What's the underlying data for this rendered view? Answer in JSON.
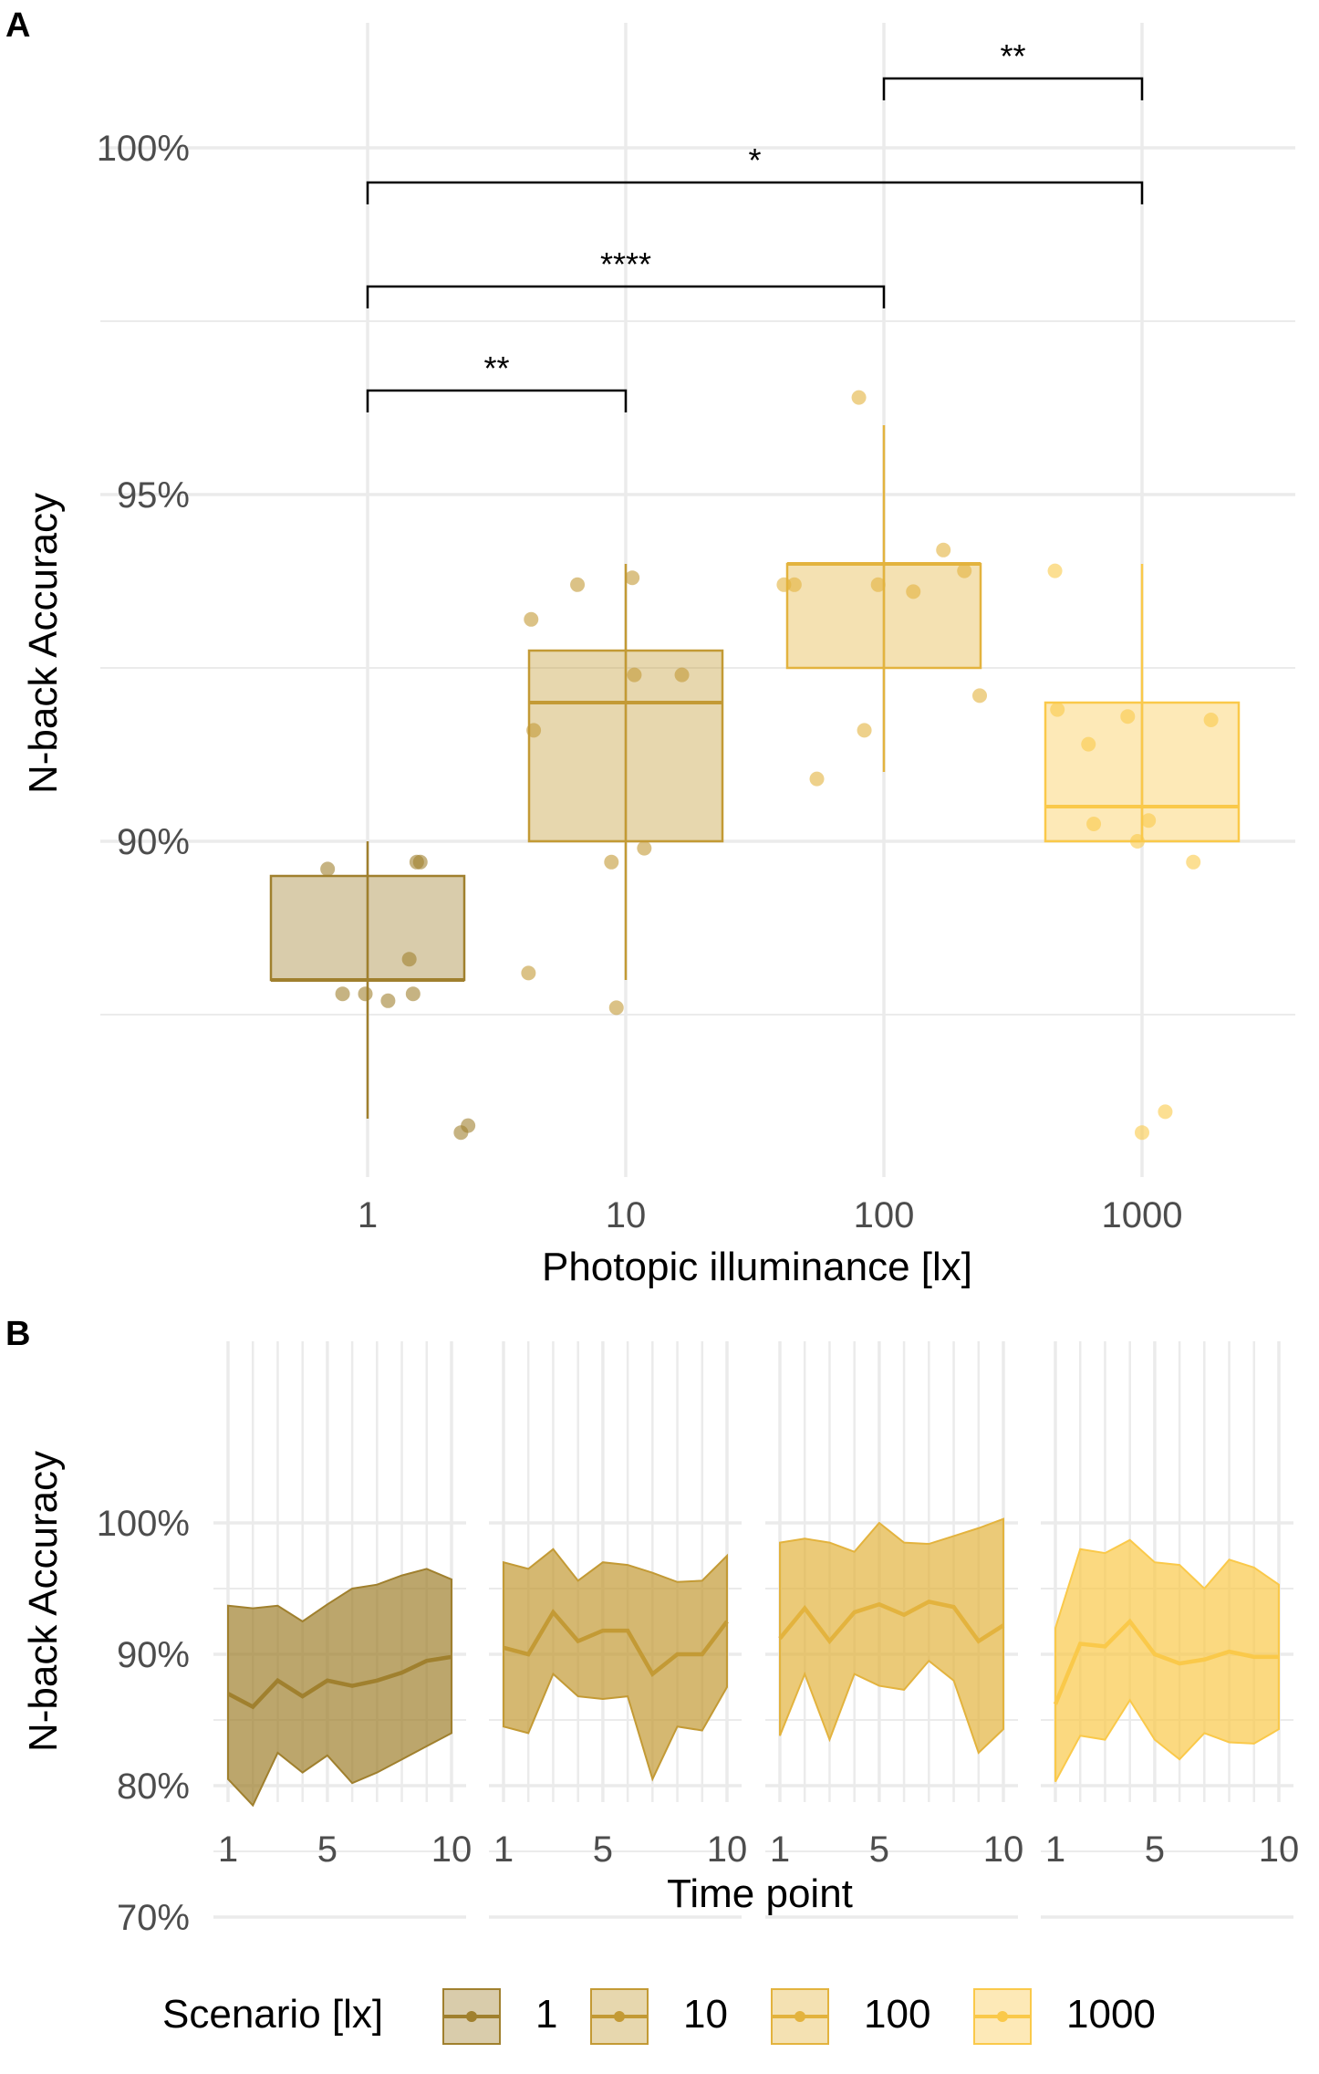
{
  "colors": {
    "s1": "#a0802e",
    "s10": "#c39a35",
    "s100": "#e3b33e",
    "s1000": "#fac94a",
    "grid": "#ebebeb",
    "text_tick": "#4d4d4d"
  },
  "chart_data": [
    {
      "panel": "A",
      "type": "box",
      "title": "A",
      "xlabel": "Photopic illuminance [lx]",
      "ylabel": "N-back Accuracy",
      "x_scale": "log10",
      "categories": [
        "1",
        "10",
        "100",
        "1000"
      ],
      "yticks": [
        "90%",
        "95%",
        "100%"
      ],
      "ylim": [
        85.3,
        101.8
      ],
      "boxes": [
        {
          "x": 1,
          "whisker_low": 86.0,
          "q1": 88.0,
          "median": 88.0,
          "q3": 89.5,
          "whisker_high": 90.0,
          "points": [
            [
              0.7,
              89.6
            ],
            [
              0.8,
              87.8
            ],
            [
              0.98,
              87.8
            ],
            [
              1.2,
              87.7
            ],
            [
              1.45,
              88.3
            ],
            [
              1.5,
              87.8
            ],
            [
              1.55,
              89.7
            ],
            [
              1.6,
              89.7
            ],
            [
              2.3,
              85.8
            ],
            [
              2.45,
              85.9
            ]
          ]
        },
        {
          "x": 10,
          "whisker_low": 88.0,
          "q1": 90.0,
          "median": 92.0,
          "q3": 92.75,
          "whisker_high": 94.0,
          "points": [
            [
              4.3,
              93.2
            ],
            [
              4.4,
              91.6
            ],
            [
              4.2,
              88.1
            ],
            [
              6.5,
              93.7
            ],
            [
              8.8,
              89.7
            ],
            [
              9.2,
              87.6
            ],
            [
              10.6,
              93.8
            ],
            [
              10.8,
              92.4
            ],
            [
              11.8,
              89.9
            ],
            [
              16.5,
              92.4
            ]
          ]
        },
        {
          "x": 100,
          "whisker_low": 91.0,
          "q1": 92.5,
          "median": 94.0,
          "q3": 94.0,
          "whisker_high": 96.0,
          "points": [
            [
              41,
              93.7
            ],
            [
              45,
              93.7
            ],
            [
              55,
              90.9
            ],
            [
              80,
              96.4
            ],
            [
              84,
              91.6
            ],
            [
              95,
              93.7
            ],
            [
              130,
              93.6
            ],
            [
              170,
              94.2
            ],
            [
              205,
              93.9
            ],
            [
              235,
              92.1
            ]
          ]
        },
        {
          "x": 1000,
          "whisker_low": 90.0,
          "q1": 90.0,
          "median": 90.5,
          "q3": 92.0,
          "whisker_high": 94.0,
          "points": [
            [
              460,
              93.9
            ],
            [
              470,
              91.9
            ],
            [
              620,
              91.4
            ],
            [
              650,
              90.25
            ],
            [
              880,
              91.8
            ],
            [
              960,
              90.0
            ],
            [
              1000,
              85.8
            ],
            [
              1060,
              90.3
            ],
            [
              1230,
              86.1
            ],
            [
              1580,
              89.7
            ],
            [
              1850,
              91.75
            ]
          ]
        }
      ],
      "comparisons": [
        {
          "from": "1",
          "to": "10",
          "y": 96.5,
          "label": "**"
        },
        {
          "from": "1",
          "to": "100",
          "y": 98.0,
          "label": "****"
        },
        {
          "from": "1",
          "to": "1000",
          "y": 99.5,
          "label": "*"
        },
        {
          "from": "100",
          "to": "1000",
          "y": 101.0,
          "label": "**"
        }
      ],
      "grid": true
    },
    {
      "panel": "B",
      "type": "area",
      "title": "B",
      "xlabel": "Time point",
      "ylabel": "N-back Accuracy",
      "xticks": [
        "1",
        "5",
        "10"
      ],
      "yticks": [
        "70%",
        "80%",
        "90%",
        "100%"
      ],
      "ylim": [
        68.5,
        104
      ],
      "xlim": [
        1,
        10
      ],
      "x": [
        1,
        2,
        3,
        4,
        5,
        6,
        7,
        8,
        9,
        10
      ],
      "series": [
        {
          "name": "1",
          "mean": [
            87.0,
            86.0,
            88.0,
            86.8,
            88.0,
            87.6,
            88.0,
            88.6,
            89.5,
            89.8
          ],
          "lower": [
            80.5,
            78.5,
            82.5,
            81.0,
            82.3,
            80.2,
            81.0,
            82.0,
            83.0,
            84.0
          ],
          "upper": [
            93.7,
            93.5,
            93.7,
            92.5,
            93.8,
            95.0,
            95.3,
            96.0,
            96.5,
            95.7
          ]
        },
        {
          "name": "10",
          "mean": [
            90.5,
            90.0,
            93.2,
            91.0,
            91.8,
            91.8,
            88.5,
            90.0,
            90.0,
            92.5
          ],
          "lower": [
            84.5,
            84.0,
            88.5,
            86.8,
            86.6,
            86.8,
            80.5,
            84.5,
            84.2,
            87.5
          ],
          "upper": [
            97.0,
            96.5,
            98.0,
            95.6,
            97.0,
            96.8,
            96.2,
            95.5,
            95.6,
            97.5
          ]
        },
        {
          "name": "100",
          "mean": [
            91.2,
            93.5,
            91.0,
            93.2,
            93.8,
            93.0,
            94.0,
            93.6,
            91.0,
            92.2
          ],
          "lower": [
            83.8,
            88.5,
            83.5,
            88.5,
            87.6,
            87.3,
            89.5,
            88.0,
            82.5,
            84.3
          ],
          "upper": [
            98.5,
            98.8,
            98.5,
            97.8,
            100.0,
            98.5,
            98.4,
            99.0,
            99.6,
            100.3
          ]
        },
        {
          "name": "1000",
          "mean": [
            86.2,
            90.8,
            90.6,
            92.5,
            90.0,
            89.3,
            89.6,
            90.2,
            89.8,
            89.8
          ],
          "lower": [
            80.3,
            83.8,
            83.5,
            86.5,
            83.5,
            82.0,
            84.0,
            83.3,
            83.2,
            84.3
          ],
          "upper": [
            92.0,
            98.0,
            97.7,
            98.7,
            97.0,
            96.8,
            95.0,
            97.2,
            96.6,
            95.3
          ]
        }
      ],
      "grid": true
    }
  ],
  "legend": {
    "title": "Scenario [lx]",
    "items": [
      "1",
      "10",
      "100",
      "1000"
    ],
    "placement": "bottom"
  }
}
